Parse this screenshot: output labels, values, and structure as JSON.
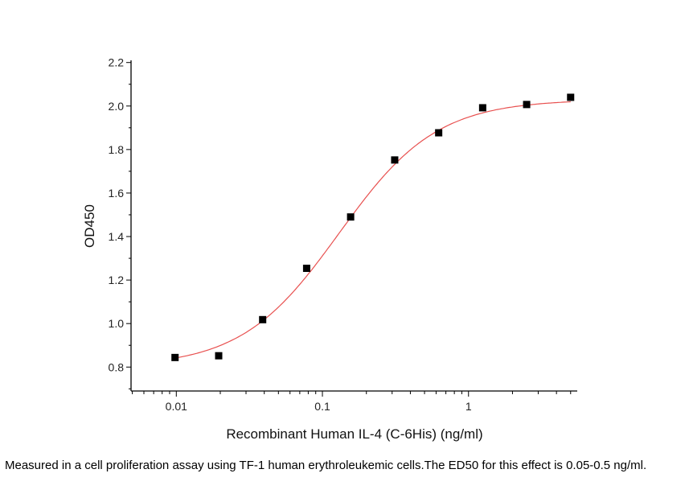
{
  "chart_data": {
    "type": "scatter",
    "title": "",
    "xlabel": "Recombinant Human IL-4 (C-6His) (ng/ml)",
    "ylabel": "OD450",
    "xscale": "log",
    "xlim": [
      0.0049,
      5.55
    ],
    "ylim": [
      0.69,
      2.21
    ],
    "xticks": [
      {
        "v": 0.01,
        "label": "0.01"
      },
      {
        "v": 0.1,
        "label": "0.1"
      },
      {
        "v": 1,
        "label": "1"
      }
    ],
    "yticks": [
      {
        "v": 0.8,
        "label": "0.8"
      },
      {
        "v": 1.0,
        "label": "1.0"
      },
      {
        "v": 1.2,
        "label": "1.2"
      },
      {
        "v": 1.4,
        "label": "1.4"
      },
      {
        "v": 1.6,
        "label": "1.6"
      },
      {
        "v": 1.8,
        "label": "1.8"
      },
      {
        "v": 2.0,
        "label": "2.0"
      },
      {
        "v": 2.2,
        "label": "2.2"
      }
    ],
    "grid": false,
    "points": {
      "x": [
        0.0098,
        0.0195,
        0.039,
        0.078,
        0.156,
        0.3125,
        0.625,
        1.25,
        2.5,
        5.0
      ],
      "y": [
        0.844,
        0.852,
        1.018,
        1.254,
        1.49,
        1.752,
        1.877,
        1.992,
        2.007,
        2.04
      ],
      "color": "#000000",
      "marker": "square"
    },
    "fit": {
      "model": "4PL",
      "bottom": 0.8,
      "top": 2.03,
      "ec50": 0.13,
      "hill": 1.3,
      "color": "#e8504f"
    }
  },
  "caption": "Measured in a cell proliferation assay using TF-1 human erythroleukemic cells.The ED50 for this effect is 0.05-0.5 ng/ml."
}
